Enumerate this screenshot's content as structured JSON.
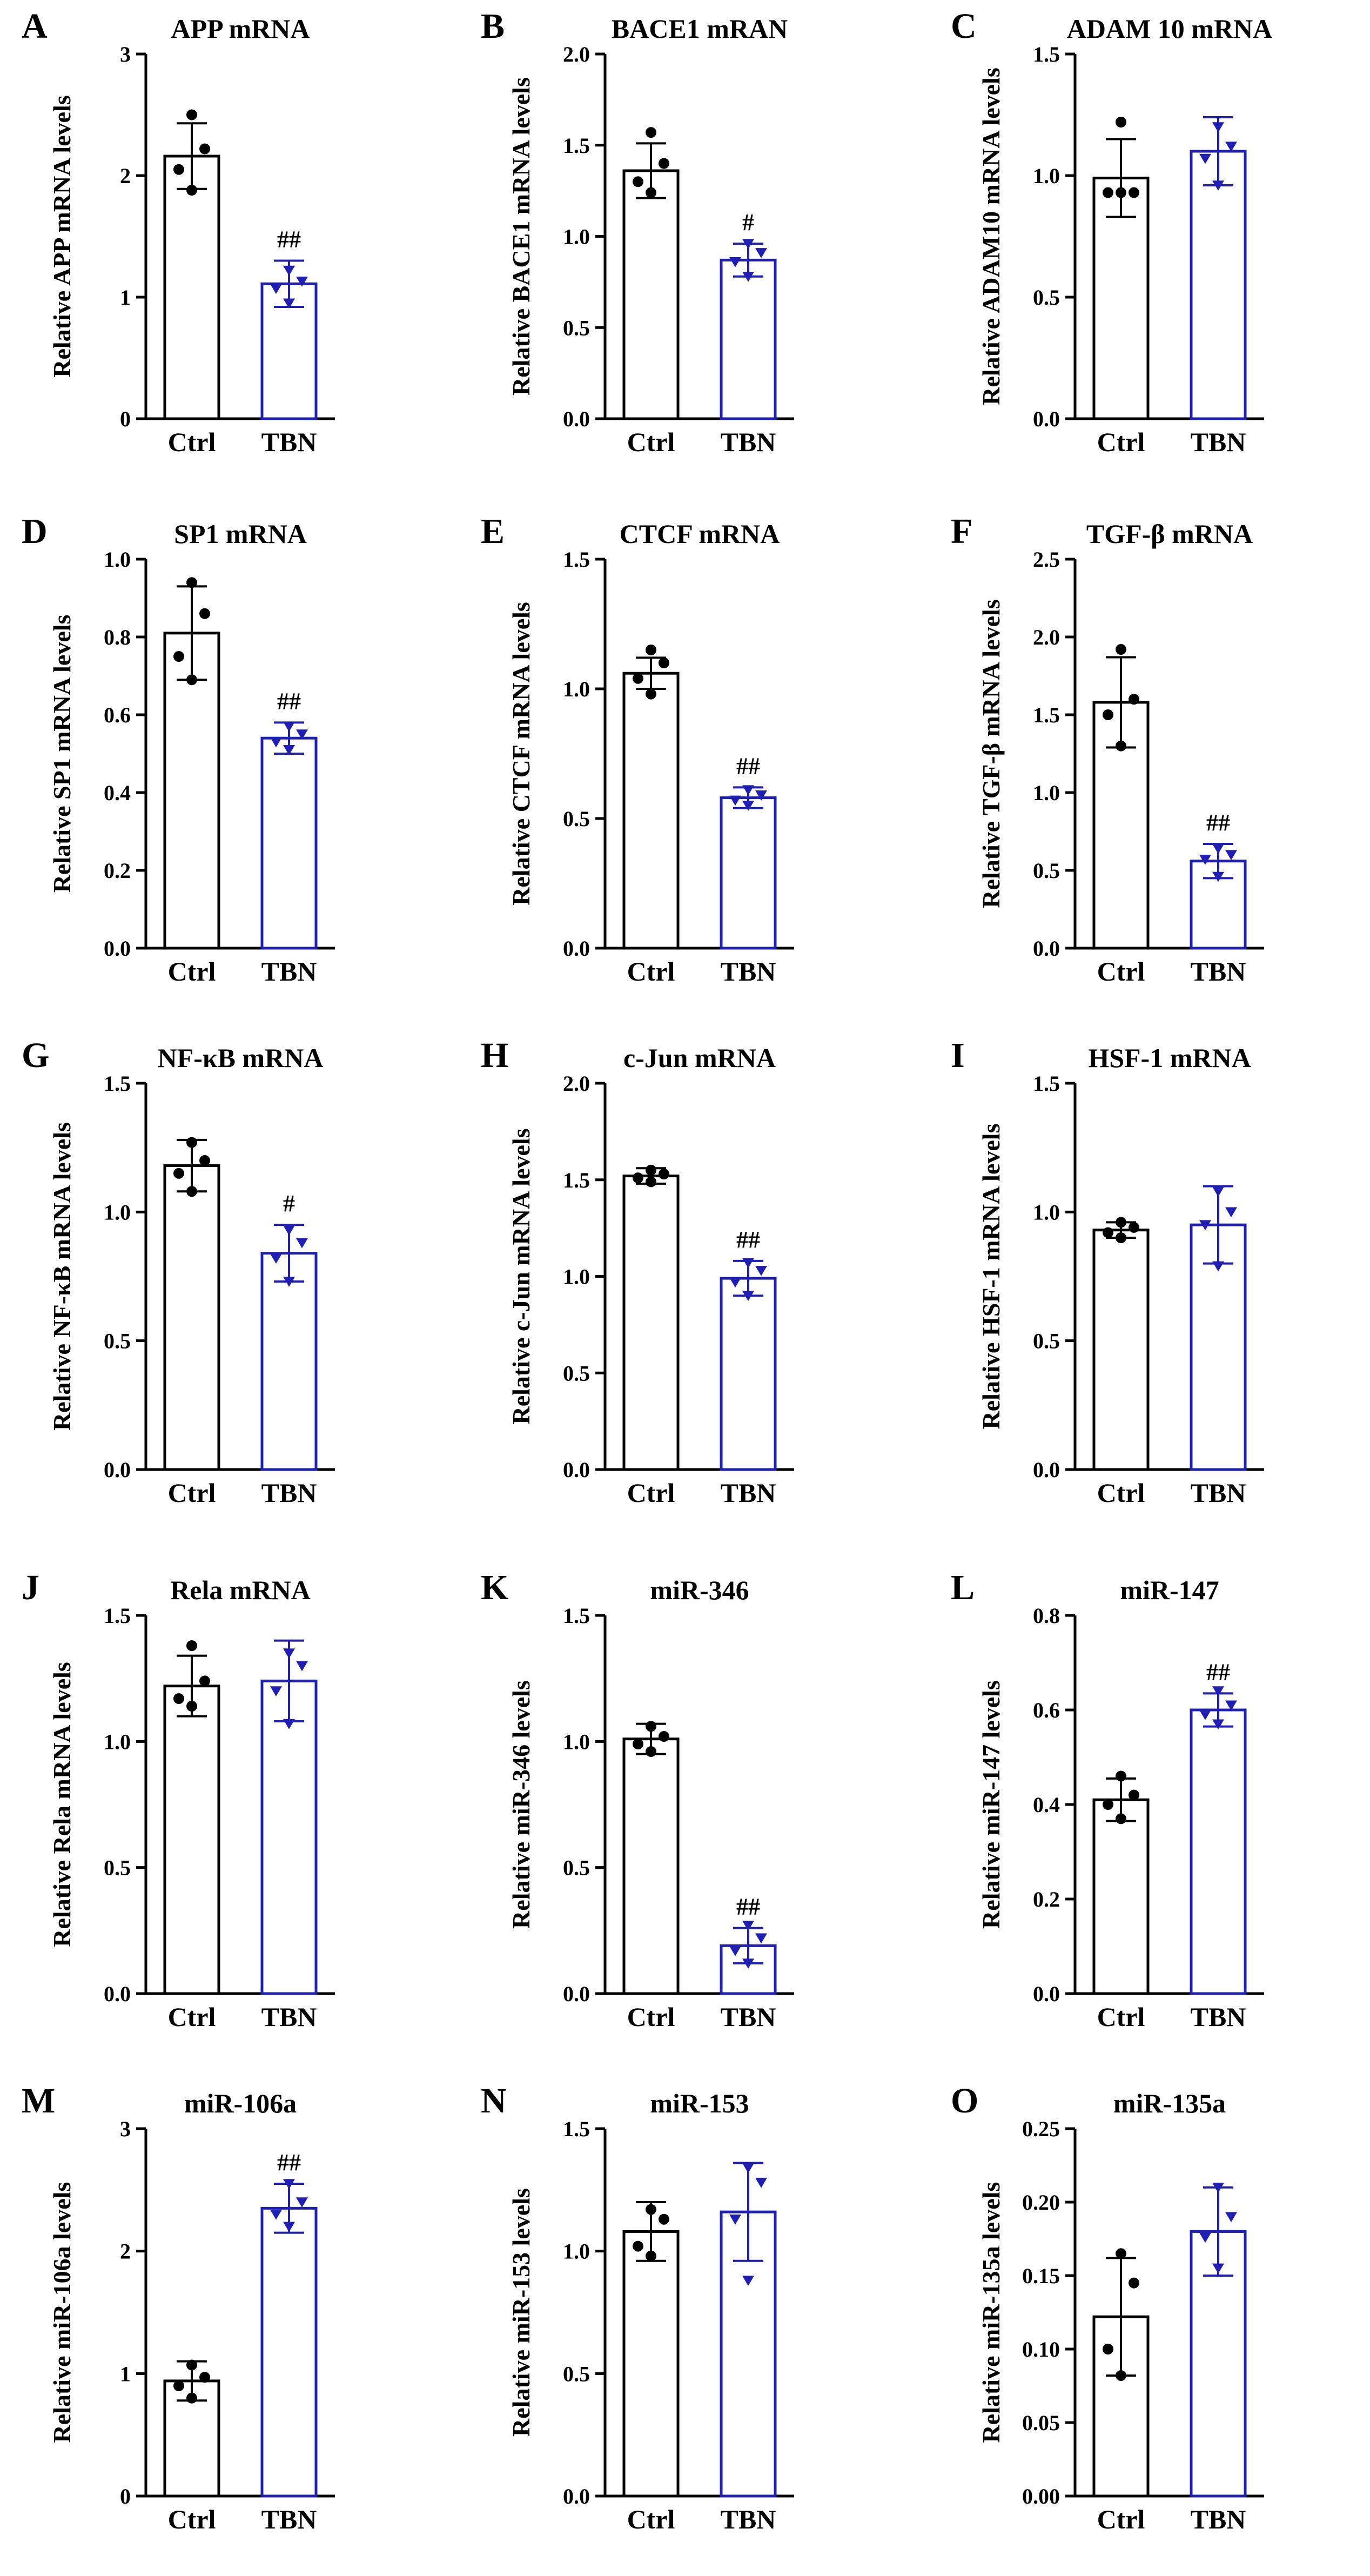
{
  "colors": {
    "ctrl": "#000000",
    "tbn": "#1f1fb4"
  },
  "chart_data": [
    {
      "panel": "A",
      "type": "bar",
      "title": "APP mRNA",
      "ylabel": "Relative APP mRNA levels",
      "categories": [
        "Ctrl",
        "TBN"
      ],
      "ylim": [
        0,
        3
      ],
      "yticks": [
        "0",
        "1",
        "2",
        "3"
      ],
      "values": [
        2.16,
        1.11
      ],
      "errors": [
        0.27,
        0.19
      ],
      "points": [
        [
          2.5,
          2.22,
          2.05,
          1.88
        ],
        [
          1.22,
          1.13,
          1.07,
          0.95
        ]
      ],
      "annotations": [
        "",
        "##"
      ]
    },
    {
      "panel": "B",
      "type": "bar",
      "title": "BACE1 mRAN",
      "ylabel": "Relative BACE1 mRNA levels",
      "categories": [
        "Ctrl",
        "TBN"
      ],
      "ylim": [
        0,
        2
      ],
      "yticks": [
        "0.0",
        "0.5",
        "1.0",
        "1.5",
        "2.0"
      ],
      "values": [
        1.36,
        0.87
      ],
      "errors": [
        0.15,
        0.09
      ],
      "points": [
        [
          1.57,
          1.4,
          1.3,
          1.24
        ],
        [
          0.96,
          0.91,
          0.86,
          0.78
        ]
      ],
      "annotations": [
        "",
        "#"
      ]
    },
    {
      "panel": "C",
      "type": "bar",
      "title": "ADAM 10 mRNA",
      "ylabel": "Relative ADAM10 mRNA levels",
      "categories": [
        "Ctrl",
        "TBN"
      ],
      "ylim": [
        0,
        1.5
      ],
      "yticks": [
        "0.0",
        "0.5",
        "1.0",
        "1.5"
      ],
      "values": [
        0.99,
        1.1
      ],
      "errors": [
        0.16,
        0.14
      ],
      "points": [
        [
          1.22,
          0.93,
          0.93,
          0.93
        ],
        [
          1.2,
          1.12,
          1.07,
          0.96
        ]
      ],
      "annotations": [
        "",
        ""
      ]
    },
    {
      "panel": "D",
      "type": "bar",
      "title": "SP1 mRNA",
      "ylabel": "Relative SP1 mRNA levels",
      "categories": [
        "Ctrl",
        "TBN"
      ],
      "ylim": [
        0,
        1.0
      ],
      "yticks": [
        "0.0",
        "0.2",
        "0.4",
        "0.6",
        "0.8",
        "1.0"
      ],
      "values": [
        0.81,
        0.54
      ],
      "errors": [
        0.12,
        0.04
      ],
      "points": [
        [
          0.94,
          0.86,
          0.75,
          0.69
        ],
        [
          0.57,
          0.55,
          0.53,
          0.51
        ]
      ],
      "annotations": [
        "",
        "##"
      ]
    },
    {
      "panel": "E",
      "type": "bar",
      "title": "CTCF mRNA",
      "ylabel": "Relative CTCF mRNA levels",
      "categories": [
        "Ctrl",
        "TBN"
      ],
      "ylim": [
        0,
        1.5
      ],
      "yticks": [
        "0.0",
        "0.5",
        "1.0",
        "1.5"
      ],
      "values": [
        1.06,
        0.58
      ],
      "errors": [
        0.06,
        0.04
      ],
      "points": [
        [
          1.15,
          1.1,
          1.04,
          0.98
        ],
        [
          0.61,
          0.59,
          0.57,
          0.55
        ]
      ],
      "annotations": [
        "",
        "##"
      ]
    },
    {
      "panel": "F",
      "type": "bar",
      "title": "TGF-β mRNA",
      "ylabel": "Relative TGF-β mRNA levels",
      "categories": [
        "Ctrl",
        "TBN"
      ],
      "ylim": [
        0,
        2.5
      ],
      "yticks": [
        "0.0",
        "0.5",
        "1.0",
        "1.5",
        "2.0",
        "2.5"
      ],
      "values": [
        1.58,
        0.56
      ],
      "errors": [
        0.29,
        0.11
      ],
      "points": [
        [
          1.92,
          1.6,
          1.5,
          1.3
        ],
        [
          0.64,
          0.6,
          0.57,
          0.46
        ]
      ],
      "annotations": [
        "",
        "##"
      ]
    },
    {
      "panel": "G",
      "type": "bar",
      "title": "NF-κB mRNA",
      "ylabel": "Relative NF-κB mRNA levels",
      "categories": [
        "Ctrl",
        "TBN"
      ],
      "ylim": [
        0,
        1.5
      ],
      "yticks": [
        "0.0",
        "0.5",
        "1.0",
        "1.5"
      ],
      "values": [
        1.18,
        0.84
      ],
      "errors": [
        0.1,
        0.11
      ],
      "points": [
        [
          1.27,
          1.2,
          1.15,
          1.08
        ],
        [
          0.93,
          0.88,
          0.82,
          0.73
        ]
      ],
      "annotations": [
        "",
        "#"
      ]
    },
    {
      "panel": "H",
      "type": "bar",
      "title": "c-Jun mRNA",
      "ylabel": "Relative c-Jun mRNA levels",
      "categories": [
        "Ctrl",
        "TBN"
      ],
      "ylim": [
        0,
        2
      ],
      "yticks": [
        "0.0",
        "0.5",
        "1.0",
        "1.5",
        "2.0"
      ],
      "values": [
        1.52,
        0.99
      ],
      "errors": [
        0.04,
        0.09
      ],
      "points": [
        [
          1.55,
          1.53,
          1.51,
          1.49
        ],
        [
          1.07,
          1.03,
          0.97,
          0.9
        ]
      ],
      "annotations": [
        "",
        "##"
      ]
    },
    {
      "panel": "I",
      "type": "bar",
      "title": "HSF-1 mRNA",
      "ylabel": "Relative HSF-1 mRNA levels",
      "categories": [
        "Ctrl",
        "TBN"
      ],
      "ylim": [
        0,
        1.5
      ],
      "yticks": [
        "0.0",
        "0.5",
        "1.0",
        "1.5"
      ],
      "values": [
        0.93,
        0.95
      ],
      "errors": [
        0.03,
        0.15
      ],
      "points": [
        [
          0.96,
          0.94,
          0.92,
          0.9
        ],
        [
          1.08,
          1.0,
          0.95,
          0.79
        ]
      ],
      "annotations": [
        "",
        ""
      ]
    },
    {
      "panel": "J",
      "type": "bar",
      "title": "Rela mRNA",
      "ylabel": "Relative Rela mRNA levels",
      "categories": [
        "Ctrl",
        "TBN"
      ],
      "ylim": [
        0,
        1.5
      ],
      "yticks": [
        "0.0",
        "0.5",
        "1.0",
        "1.5"
      ],
      "values": [
        1.22,
        1.24
      ],
      "errors": [
        0.12,
        0.16
      ],
      "points": [
        [
          1.38,
          1.24,
          1.17,
          1.14
        ],
        [
          1.35,
          1.3,
          1.2,
          1.07
        ]
      ],
      "annotations": [
        "",
        ""
      ]
    },
    {
      "panel": "K",
      "type": "bar",
      "title": "miR-346",
      "ylabel": "Relative miR-346 levels",
      "categories": [
        "Ctrl",
        "TBN"
      ],
      "ylim": [
        0,
        1.5
      ],
      "yticks": [
        "0.0",
        "0.5",
        "1.0",
        "1.5"
      ],
      "values": [
        1.01,
        0.19
      ],
      "errors": [
        0.06,
        0.07
      ],
      "points": [
        [
          1.06,
          1.02,
          0.99,
          0.96
        ],
        [
          0.27,
          0.22,
          0.17,
          0.12
        ]
      ],
      "annotations": [
        "",
        "##"
      ]
    },
    {
      "panel": "L",
      "type": "bar",
      "title": "miR-147",
      "ylabel": "Relative miR-147 levels",
      "categories": [
        "Ctrl",
        "TBN"
      ],
      "ylim": [
        0,
        0.8
      ],
      "yticks": [
        "0.0",
        "0.2",
        "0.4",
        "0.6",
        "0.8"
      ],
      "values": [
        0.41,
        0.6
      ],
      "errors": [
        0.045,
        0.035
      ],
      "points": [
        [
          0.46,
          0.42,
          0.4,
          0.37
        ],
        [
          0.64,
          0.61,
          0.59,
          0.57
        ]
      ],
      "annotations": [
        "",
        "##"
      ]
    },
    {
      "panel": "M",
      "type": "bar",
      "title": "miR-106a",
      "ylabel": "Relative miR-106a levels",
      "categories": [
        "Ctrl",
        "TBN"
      ],
      "ylim": [
        0,
        3
      ],
      "yticks": [
        "0",
        "1",
        "2",
        "3"
      ],
      "values": [
        0.94,
        2.35
      ],
      "errors": [
        0.16,
        0.2
      ],
      "points": [
        [
          1.07,
          0.97,
          0.9,
          0.8
        ],
        [
          2.55,
          2.4,
          2.3,
          2.2
        ]
      ],
      "annotations": [
        "",
        "##"
      ]
    },
    {
      "panel": "N",
      "type": "bar",
      "title": "miR-153",
      "ylabel": "Relative miR-153 levels",
      "categories": [
        "Ctrl",
        "TBN"
      ],
      "ylim": [
        0,
        1.5
      ],
      "yticks": [
        "0.0",
        "0.5",
        "1.0",
        "1.5"
      ],
      "values": [
        1.08,
        1.16
      ],
      "errors": [
        0.12,
        0.2
      ],
      "points": [
        [
          1.17,
          1.13,
          1.02,
          0.98
        ],
        [
          1.34,
          1.28,
          1.13,
          0.88
        ]
      ],
      "annotations": [
        "",
        ""
      ]
    },
    {
      "panel": "O",
      "type": "bar",
      "title": "miR-135a",
      "ylabel": "Relative miR-135a levels",
      "categories": [
        "Ctrl",
        "TBN"
      ],
      "ylim": [
        0,
        0.25
      ],
      "yticks": [
        "0.00",
        "0.05",
        "0.10",
        "0.15",
        "0.20",
        "0.25"
      ],
      "values": [
        0.122,
        0.18
      ],
      "errors": [
        0.04,
        0.03
      ],
      "points": [
        [
          0.165,
          0.145,
          0.1,
          0.082
        ],
        [
          0.21,
          0.19,
          0.176,
          0.155
        ]
      ],
      "annotations": [
        "",
        ""
      ]
    }
  ]
}
